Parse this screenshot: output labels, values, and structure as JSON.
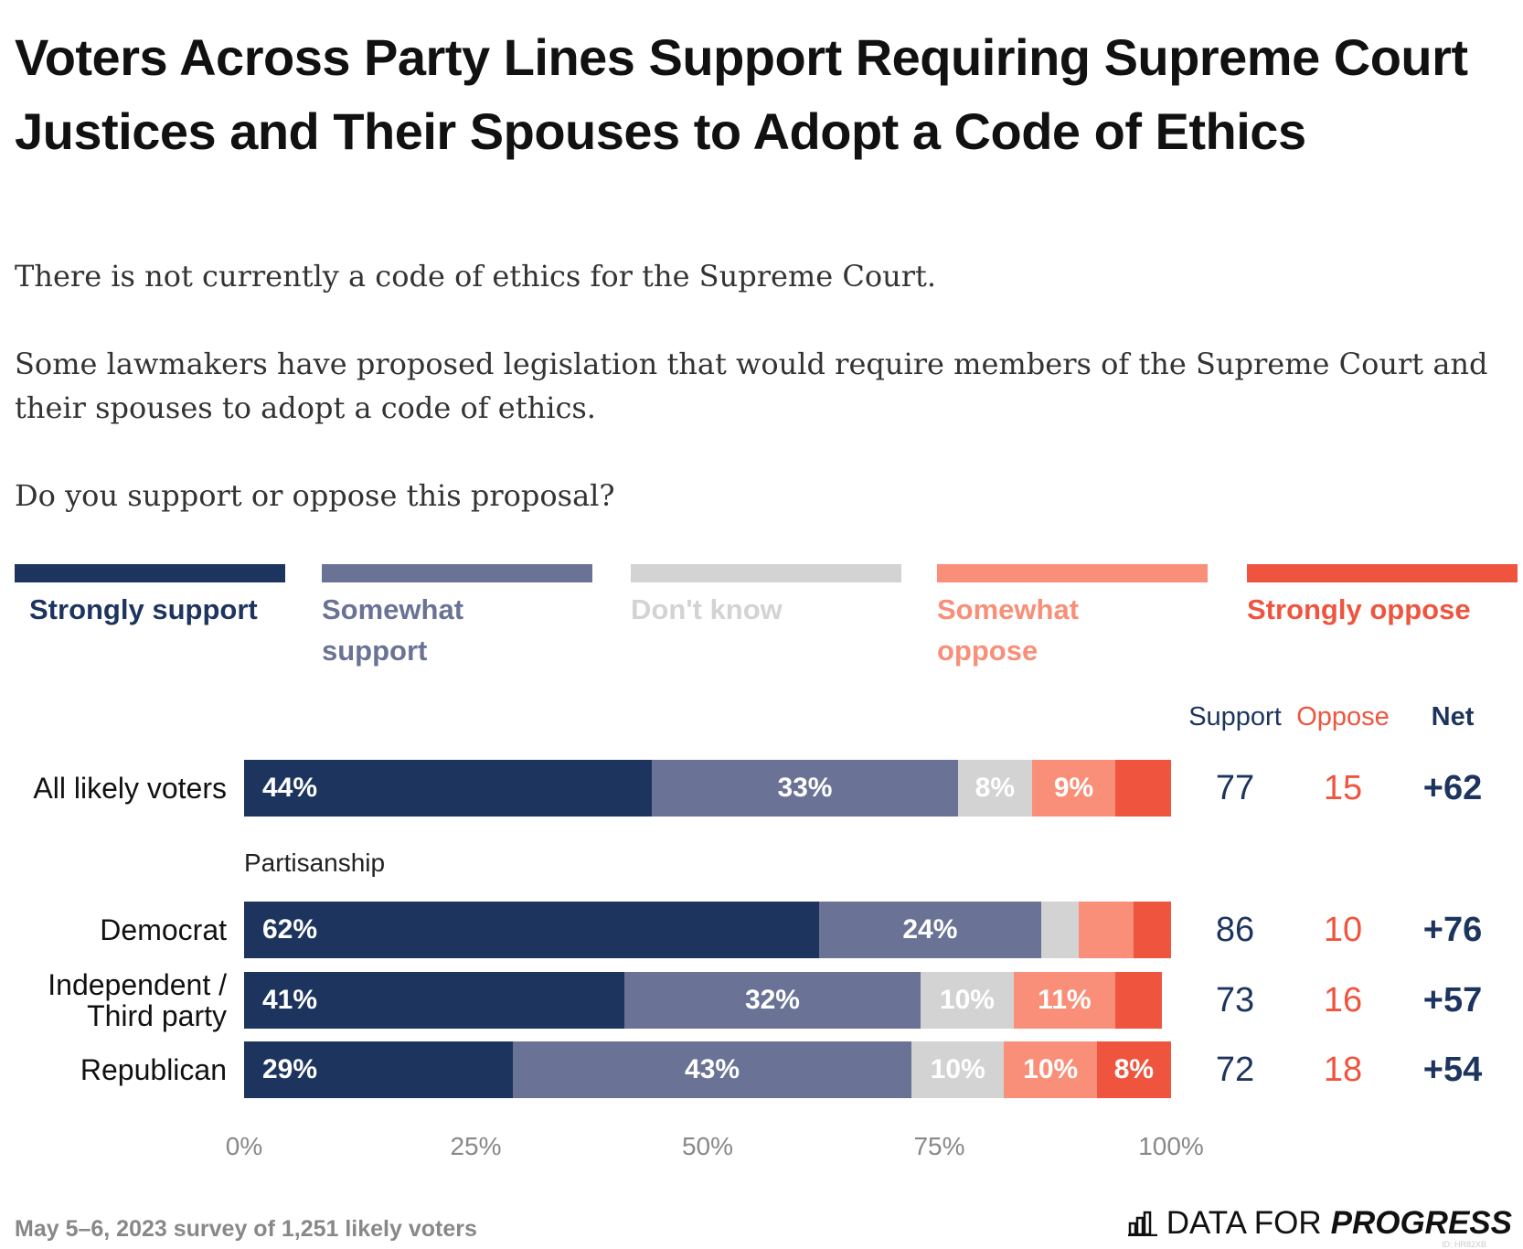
{
  "chart_data": {
    "type": "stacked-bar",
    "title": "Voters Across Party Lines Support Requiring Supreme Court Justices and Their Spouses to Adopt a Code of Ethics",
    "subtitle": [
      "There is not currently a code of ethics for the Supreme Court.",
      "Some lawmakers have proposed legislation that would require members of the Supreme Court and their spouses to adopt a code of ethics.",
      "Do you support or oppose this proposal?"
    ],
    "categories": [
      "All likely voters",
      "Democrat",
      "Independent / Third party",
      "Republican"
    ],
    "group_label": "Partisanship",
    "series": [
      {
        "name": "Strongly support",
        "color": "#1d355e",
        "values": [
          44,
          62,
          41,
          29
        ],
        "value_labels": [
          "44%",
          "62%",
          "41%",
          "29%"
        ]
      },
      {
        "name": "Somewhat support",
        "color": "#6a7395",
        "values": [
          33,
          24,
          32,
          43
        ],
        "value_labels": [
          "33%",
          "24%",
          "32%",
          "43%"
        ]
      },
      {
        "name": "Don't know",
        "color": "#d3d3d3",
        "values": [
          8,
          4,
          10,
          10
        ],
        "value_labels": [
          "8%",
          null,
          "10%",
          "10%"
        ]
      },
      {
        "name": "Somewhat oppose",
        "color": "#f98f78",
        "values": [
          9,
          6,
          11,
          10
        ],
        "value_labels": [
          "9%",
          null,
          "11%",
          "10%"
        ]
      },
      {
        "name": "Strongly oppose",
        "color": "#ef553e",
        "values": [
          6,
          4,
          5,
          8
        ],
        "value_labels": [
          null,
          null,
          null,
          "8%"
        ]
      }
    ],
    "xlim": [
      0,
      100
    ],
    "xticks": [
      {
        "value": 0,
        "label": "0%"
      },
      {
        "value": 25,
        "label": "25%"
      },
      {
        "value": 50,
        "label": "50%"
      },
      {
        "value": 75,
        "label": "75%"
      },
      {
        "value": 100,
        "label": "100%"
      }
    ],
    "columns": [
      {
        "name": "Support",
        "color": "#1d355e",
        "values": [
          77,
          86,
          73,
          72
        ]
      },
      {
        "name": "Oppose",
        "color": "#ef553e",
        "values": [
          15,
          10,
          16,
          18
        ]
      },
      {
        "name": "Net",
        "color": "#1d355e",
        "values": [
          "+62",
          "+76",
          "+57",
          "+54"
        ]
      }
    ],
    "note": "May 5–6, 2023 survey of 1,251 likely voters",
    "brand": [
      "DATA FOR",
      "PROGRESS"
    ],
    "id_label": "ID: HR82XB"
  }
}
